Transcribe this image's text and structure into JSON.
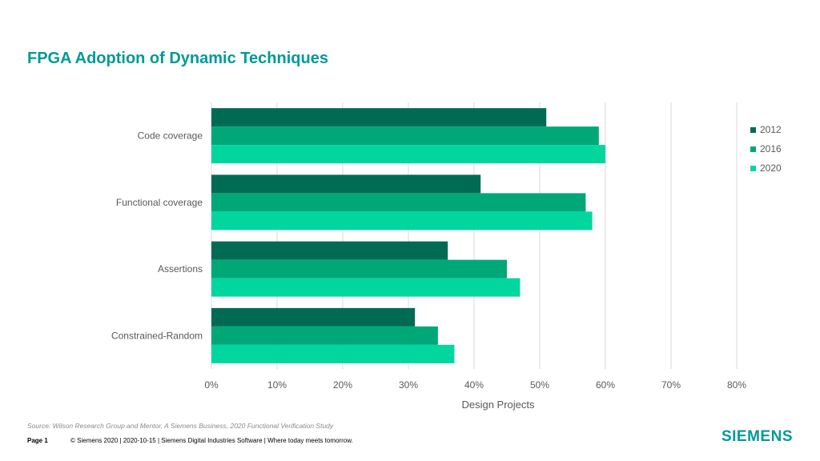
{
  "slide": {
    "title": "FPGA Adoption of Dynamic Techniques",
    "source": "Source:  Wilson Research Group and Mentor,  A Siemens Business, 2020 Functional Verification Study",
    "footer": {
      "page": "Page 1",
      "text": "© Siemens 2020 | 2020-10-15 | Siemens Digital Industries Software | Where today meets tomorrow."
    },
    "logo": "SIEMENS"
  },
  "chart_data": {
    "type": "bar",
    "orientation": "horizontal",
    "categories": [
      "Code coverage",
      "Functional coverage",
      "Assertions",
      "Constrained-Random"
    ],
    "series": [
      {
        "name": "2012",
        "values": [
          51,
          41,
          36,
          31
        ],
        "color": "#006b53"
      },
      {
        "name": "2016",
        "values": [
          59,
          57,
          45,
          34.5
        ],
        "color": "#00a878"
      },
      {
        "name": "2020",
        "values": [
          60,
          58,
          47,
          37
        ],
        "color": "#00d69e"
      }
    ],
    "xlabel": "Design Projects",
    "xlim": [
      0,
      80
    ],
    "xticks": [
      "0%",
      "10%",
      "20%",
      "30%",
      "40%",
      "50%",
      "60%",
      "70%",
      "80%"
    ],
    "grid": true,
    "legend": "right"
  }
}
